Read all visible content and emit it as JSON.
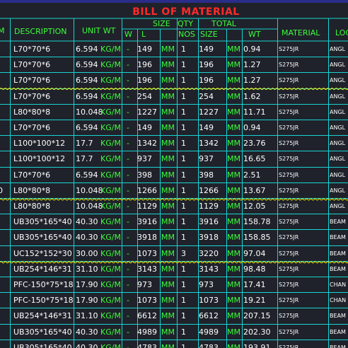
{
  "title": "BILL OF MATERIAL",
  "headers": {
    "mark_fragment": "M",
    "description": "DESCRIPTION",
    "unit_wt": "UNIT WT",
    "size_top": "SIZE",
    "qty_top": "QTY",
    "total_top": "TOTAL",
    "size_w": "W",
    "size_l": "L",
    "nos": "NOS",
    "total_size": "SIZE",
    "total_wt": "WT",
    "material": "MATERIAL",
    "location_fragment": "LOC"
  },
  "rows": [
    {
      "mark": "",
      "desc": "L70*70*6",
      "unit": "6.594",
      "unit_lbl": "KG/M",
      "w": "-",
      "l": "149",
      "mm": "MM",
      "nos": "1",
      "size": "149",
      "mm2": "MM",
      "wt": "0.94",
      "material": "S275JR",
      "loc": "ANGL"
    },
    {
      "mark": "",
      "desc": "L70*70*6",
      "unit": "6.594",
      "unit_lbl": "KG/M",
      "w": "-",
      "l": "196",
      "mm": "MM",
      "nos": "1",
      "size": "196",
      "mm2": "MM",
      "wt": "1.27",
      "material": "S275JR",
      "loc": "ANGL"
    },
    {
      "mark": "",
      "desc": "L70*70*6",
      "unit": "6.594",
      "unit_lbl": "KG/M",
      "w": "-",
      "l": "196",
      "mm": "MM",
      "nos": "1",
      "size": "196",
      "mm2": "MM",
      "wt": "1.27",
      "material": "S275JR",
      "loc": "ANGL"
    },
    {
      "mark": "",
      "desc": "L70*70*6",
      "unit": "6.594",
      "unit_lbl": "KG/M",
      "w": "-",
      "l": "254",
      "mm": "MM",
      "nos": "1",
      "size": "254",
      "mm2": "MM",
      "wt": "1.62",
      "material": "S275JR",
      "loc": "ANGL"
    },
    {
      "mark": "",
      "desc": "L80*80*8",
      "unit": "10.048",
      "unit_lbl": "KG/M",
      "w": "-",
      "l": "1227",
      "mm": "MM",
      "nos": "1",
      "size": "1227",
      "mm2": "MM",
      "wt": "11.71",
      "material": "S275JR",
      "loc": "ANGL"
    },
    {
      "mark": "",
      "desc": "L70*70*6",
      "unit": "6.594",
      "unit_lbl": "KG/M",
      "w": "-",
      "l": "149",
      "mm": "MM",
      "nos": "1",
      "size": "149",
      "mm2": "MM",
      "wt": "0.94",
      "material": "S275JR",
      "loc": "ANGL"
    },
    {
      "mark": "",
      "desc": "L100*100*12",
      "unit": "17.7",
      "unit_lbl": "KG/M",
      "w": "-",
      "l": "1342",
      "mm": "MM",
      "nos": "1",
      "size": "1342",
      "mm2": "MM",
      "wt": "23.76",
      "material": "S275JR",
      "loc": "ANGL"
    },
    {
      "mark": "",
      "desc": "L100*100*12",
      "unit": "17.7",
      "unit_lbl": "KG/M",
      "w": "-",
      "l": "937",
      "mm": "MM",
      "nos": "1",
      "size": "937",
      "mm2": "MM",
      "wt": "16.65",
      "material": "S275JR",
      "loc": "ANGL"
    },
    {
      "mark": "",
      "desc": "L70*70*6",
      "unit": "6.594",
      "unit_lbl": "KG/M",
      "w": "-",
      "l": "398",
      "mm": "MM",
      "nos": "1",
      "size": "398",
      "mm2": "MM",
      "wt": "2.51",
      "material": "S275JR",
      "loc": "ANGL"
    },
    {
      "mark": "0",
      "desc": "L80*80*8",
      "unit": "10.048",
      "unit_lbl": "KG/M",
      "w": "-",
      "l": "1266",
      "mm": "MM",
      "nos": "1",
      "size": "1266",
      "mm2": "MM",
      "wt": "13.67",
      "material": "S275JR",
      "loc": "ANGL"
    },
    {
      "mark": "",
      "desc": "L80*80*8",
      "unit": "10.048",
      "unit_lbl": "KG/M",
      "w": "-",
      "l": "1129",
      "mm": "MM",
      "nos": "1",
      "size": "1129",
      "mm2": "MM",
      "wt": "12.05",
      "material": "S275JR",
      "loc": "ANGL"
    },
    {
      "mark": "",
      "desc": "UB305*165*40",
      "unit": "40.30",
      "unit_lbl": "KG/M",
      "w": "-",
      "l": "3916",
      "mm": "MM",
      "nos": "1",
      "size": "3916",
      "mm2": "MM",
      "wt": "158.78",
      "material": "S275JR",
      "loc": "BEAM"
    },
    {
      "mark": "",
      "desc": "UB305*165*40",
      "unit": "40.30",
      "unit_lbl": "KG/M",
      "w": "-",
      "l": "3918",
      "mm": "MM",
      "nos": "1",
      "size": "3918",
      "mm2": "MM",
      "wt": "158.85",
      "material": "S275JR",
      "loc": "BEAM"
    },
    {
      "mark": "",
      "desc": "UC152*152*30",
      "unit": "30.00",
      "unit_lbl": "KG/M",
      "w": "-",
      "l": "1073",
      "mm": "MM",
      "nos": "3",
      "size": "3220",
      "mm2": "MM",
      "wt": "97.04",
      "material": "S275JR",
      "loc": "BEAM"
    },
    {
      "mark": "",
      "desc": "UB254*146*31",
      "unit": "31.10",
      "unit_lbl": "KG/M",
      "w": "-",
      "l": "3143",
      "mm": "MM",
      "nos": "1",
      "size": "3143",
      "mm2": "MM",
      "wt": "98.48",
      "material": "S275JR",
      "loc": "BEAM"
    },
    {
      "mark": "",
      "desc": "PFC-150*75*18",
      "unit": "17.90",
      "unit_lbl": "KG/M",
      "w": "-",
      "l": "973",
      "mm": "MM",
      "nos": "1",
      "size": "973",
      "mm2": "MM",
      "wt": "17.41",
      "material": "S275JR",
      "loc": "CHAN"
    },
    {
      "mark": "",
      "desc": "PFC-150*75*18",
      "unit": "17.90",
      "unit_lbl": "KG/M",
      "w": "-",
      "l": "1073",
      "mm": "MM",
      "nos": "1",
      "size": "1073",
      "mm2": "MM",
      "wt": "19.21",
      "material": "S275JR",
      "loc": "CHAN"
    },
    {
      "mark": "",
      "desc": "UB254*146*31",
      "unit": "31.10",
      "unit_lbl": "KG/M",
      "w": "-",
      "l": "6612",
      "mm": "MM",
      "nos": "1",
      "size": "6612",
      "mm2": "MM",
      "wt": "207.15",
      "material": "S275JR",
      "loc": "BEAM"
    },
    {
      "mark": "",
      "desc": "UB305*165*40",
      "unit": "40.30",
      "unit_lbl": "KG/M",
      "w": "-",
      "l": "4989",
      "mm": "MM",
      "nos": "1",
      "size": "4989",
      "mm2": "MM",
      "wt": "202.30",
      "material": "S275JR",
      "loc": "BEAM"
    },
    {
      "mark": "",
      "desc": "UB305*165*40",
      "unit": "40.30",
      "unit_lbl": "KG/M",
      "w": "-",
      "l": "4783",
      "mm": "MM",
      "nos": "1",
      "size": "4783",
      "mm2": "MM",
      "wt": "193.91",
      "material": "S275JR",
      "loc": "BEAM"
    }
  ]
}
